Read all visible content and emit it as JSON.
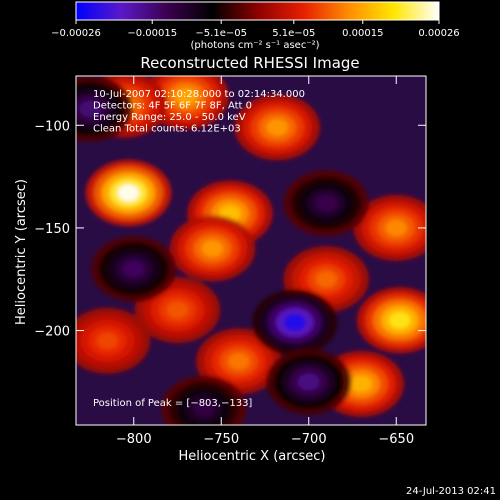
{
  "chart_data": {
    "type": "heatmap",
    "title": "Reconstructed RHESSI Image",
    "xlabel": "Heliocentric X (arcsec)",
    "ylabel": "Heliocentric Y (arcsec)",
    "xlim": [
      -833,
      -633
    ],
    "ylim": [
      -246,
      -76
    ],
    "xticks": [
      -800,
      -750,
      -700,
      -650
    ],
    "yticks": [
      -100,
      -150,
      -200
    ],
    "xtick_labels": [
      "−800",
      "−750",
      "−700",
      "−650"
    ],
    "ytick_labels": [
      "−100",
      "−150",
      "−200"
    ],
    "colorbar": {
      "range": [
        -0.00026,
        0.00026
      ],
      "tick_labels": [
        "−0.00026",
        "−0.00015",
        "−5.1e−05",
        "5.1e−05",
        "0.00015",
        "0.00026"
      ],
      "unit_label": "(photons cm⁻² s⁻¹ asec⁻²)",
      "colormap": [
        "#0000ff",
        "#5a19c8",
        "#3c0050",
        "#000000",
        "#8c0000",
        "#e61e00",
        "#ff8c00",
        "#ffe600",
        "#ffffff"
      ]
    },
    "annotations": [
      "10-Jul-2007 02:10:28.000 to 02:14:34.000",
      "Detectors: 4F 5F 6F 7F 8F, Att 0",
      "Energy Range: 25.0 - 50.0 keV",
      "Clean     Total counts: 6.12E+03"
    ],
    "peak_label": "Position of Peak = [−803,−133]",
    "peak": [
      -803,
      -133
    ],
    "blobs": [
      {
        "x": -803,
        "y": -133,
        "value": 0.00026
      },
      {
        "x": -745,
        "y": -143,
        "value": 0.00017
      },
      {
        "x": -755,
        "y": -160,
        "value": 0.00014
      },
      {
        "x": -648,
        "y": -195,
        "value": 0.0002
      },
      {
        "x": -670,
        "y": -226,
        "value": 0.00016
      },
      {
        "x": -770,
        "y": -86,
        "value": 0.00015
      },
      {
        "x": -805,
        "y": -90,
        "value": 0.00013
      },
      {
        "x": -718,
        "y": -101,
        "value": 0.00014
      },
      {
        "x": -650,
        "y": -150,
        "value": 0.00013
      },
      {
        "x": -690,
        "y": -175,
        "value": 0.00011
      },
      {
        "x": -775,
        "y": -190,
        "value": 0.0001
      },
      {
        "x": -740,
        "y": -215,
        "value": 0.00012
      },
      {
        "x": -815,
        "y": -205,
        "value": 9e-05
      },
      {
        "x": -708,
        "y": -196,
        "value": -0.00024
      },
      {
        "x": -700,
        "y": -225,
        "value": -0.00016
      },
      {
        "x": -800,
        "y": -170,
        "value": -0.00014
      },
      {
        "x": -825,
        "y": -92,
        "value": -0.00015
      },
      {
        "x": -690,
        "y": -138,
        "value": -0.00013
      },
      {
        "x": -760,
        "y": -238,
        "value": -0.00012
      }
    ]
  },
  "footer": {
    "timestamp": "24-Jul-2013 02:41"
  }
}
